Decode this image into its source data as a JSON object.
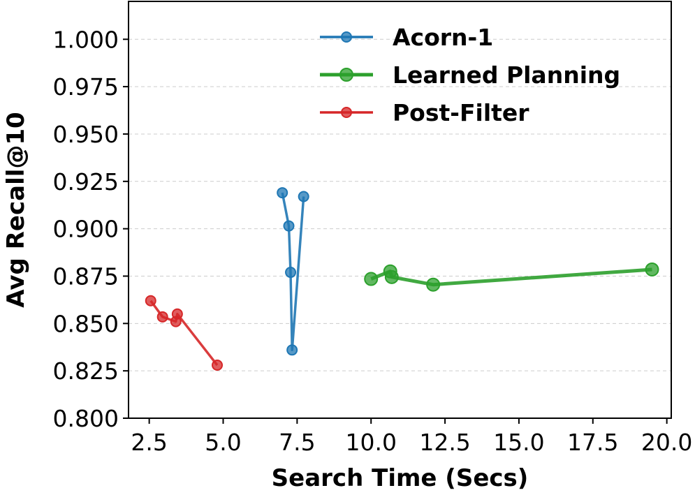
{
  "chart_data": {
    "type": "line",
    "xlabel": "Search Time (Secs)",
    "ylabel": "Avg Recall@10",
    "xlim": [
      1.8,
      20.15
    ],
    "ylim": [
      0.8,
      1.02
    ],
    "xticks": [
      "2.5",
      "5.0",
      "7.5",
      "10.0",
      "12.5",
      "15.0",
      "17.5",
      "20.0"
    ],
    "yticks": [
      "0.800",
      "0.825",
      "0.850",
      "0.875",
      "0.900",
      "0.925",
      "0.950",
      "0.975",
      "1.000"
    ],
    "grid": "horizontal dashed",
    "legend_position": "top-right",
    "series": [
      {
        "name": "Acorn-1",
        "color": "#1f77b4",
        "points": [
          {
            "x": 7.0,
            "y": 0.919
          },
          {
            "x": 7.22,
            "y": 0.9015
          },
          {
            "x": 7.28,
            "y": 0.877
          },
          {
            "x": 7.33,
            "y": 0.836
          },
          {
            "x": 7.72,
            "y": 0.917
          }
        ]
      },
      {
        "name": "Learned Planning",
        "color": "#2ca02c",
        "points": [
          {
            "x": 10.0,
            "y": 0.8735
          },
          {
            "x": 10.65,
            "y": 0.8775
          },
          {
            "x": 10.7,
            "y": 0.8745
          },
          {
            "x": 12.1,
            "y": 0.8705
          },
          {
            "x": 19.5,
            "y": 0.8785
          }
        ]
      },
      {
        "name": "Post-Filter",
        "color": "#d62728",
        "points": [
          {
            "x": 2.55,
            "y": 0.862
          },
          {
            "x": 2.95,
            "y": 0.8535
          },
          {
            "x": 3.4,
            "y": 0.851
          },
          {
            "x": 3.45,
            "y": 0.855
          },
          {
            "x": 4.8,
            "y": 0.828
          }
        ]
      }
    ]
  }
}
